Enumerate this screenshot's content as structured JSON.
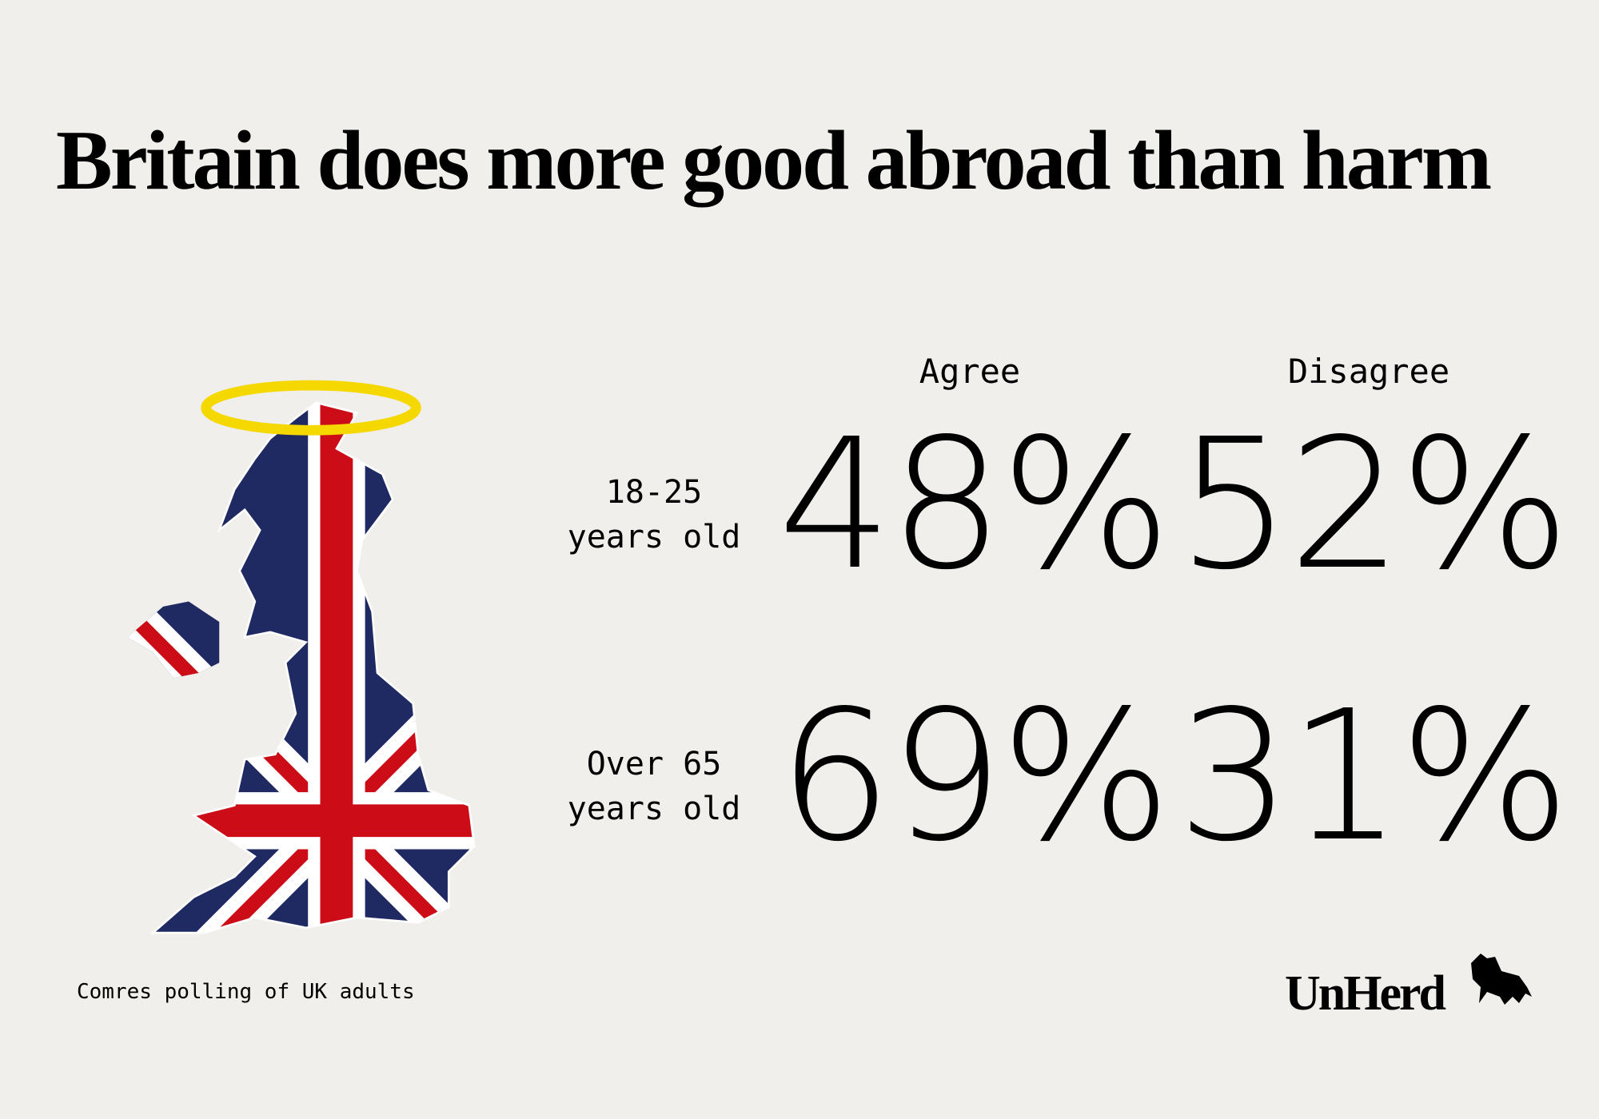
{
  "header": {
    "title": "Britain does more good abroad than harm"
  },
  "table": {
    "columns": [
      "Agree",
      "Disagree"
    ],
    "rows": [
      {
        "label": [
          "18-25",
          "years old"
        ],
        "values": [
          "48%",
          "52%"
        ]
      },
      {
        "label": [
          "Over 65",
          "years old"
        ],
        "values": [
          "69%",
          "31%"
        ]
      }
    ]
  },
  "footer": {
    "source": "Comres polling of UK adults",
    "logo": "UnHerd"
  }
}
